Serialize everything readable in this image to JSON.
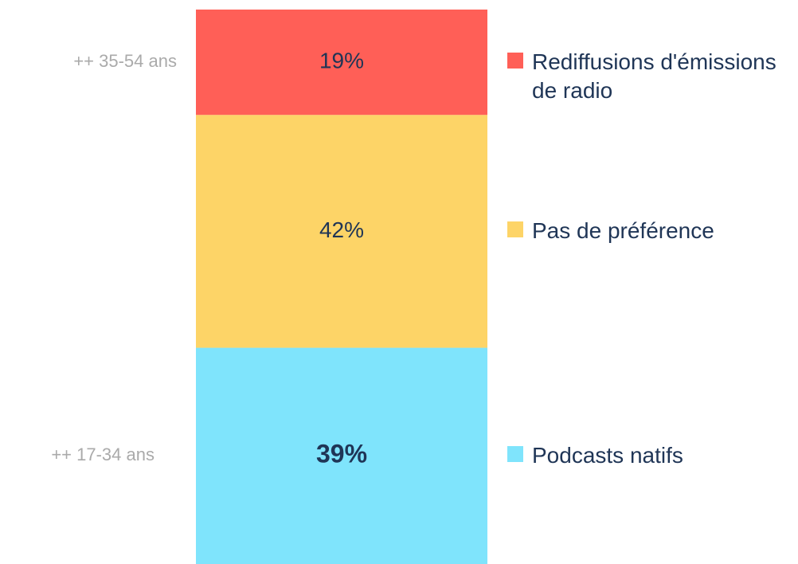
{
  "chart_data": {
    "type": "stacked-bar",
    "ylim": [
      0,
      100
    ],
    "series": [
      {
        "name": "Rediffusions d'émissions de radio",
        "color": "#ff5f57",
        "values": [
          19
        ],
        "value_labels": [
          "19%"
        ]
      },
      {
        "name": "Pas de préférence",
        "color": "#fdd467",
        "values": [
          42
        ],
        "value_labels": [
          "42%"
        ]
      },
      {
        "name": "Podcasts natifs",
        "color": "#7fe4fc",
        "values": [
          39
        ],
        "value_labels": [
          "39%"
        ]
      }
    ],
    "annotations": [
      "++ 35-54 ans",
      "++ 17-34 ans"
    ]
  }
}
